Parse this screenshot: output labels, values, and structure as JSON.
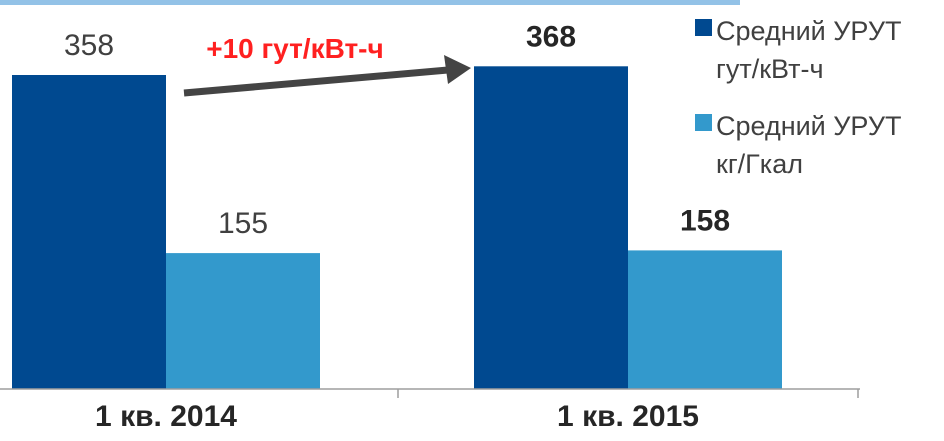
{
  "chart_data": {
    "type": "bar",
    "categories": [
      "1 кв. 2014",
      "1 кв. 2015"
    ],
    "series": [
      {
        "name": "Средний УРУТ гут/кВт-ч",
        "legend_lines": [
          "Средний УРУТ",
          "гут/кВт-ч"
        ],
        "values": [
          358,
          368
        ],
        "value_labels": [
          "358",
          "368"
        ],
        "color": "#004990"
      },
      {
        "name": "Средний УРУТ кг/Гкал",
        "legend_lines": [
          "Средний УРУТ",
          "кг/Гкал"
        ],
        "values": [
          155,
          158
        ],
        "value_labels": [
          "155",
          "158"
        ],
        "color": "#3399cc"
      }
    ],
    "bold_labels_category_index": 1,
    "annotation": {
      "text": "+10 гут/кВт-ч",
      "color": "#ff2020"
    },
    "arrow_color": "#444444",
    "axis_color": "#9e9e9e",
    "legend_position": "right",
    "ylim": [
      0,
      420
    ]
  }
}
